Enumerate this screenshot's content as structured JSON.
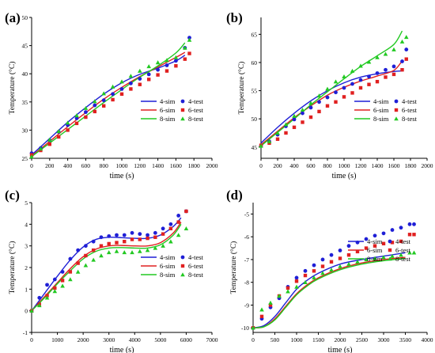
{
  "legend": {
    "sim_labels": [
      "4-sim",
      "6-sim",
      "8-sim"
    ],
    "test_labels": [
      "4-test",
      "6-test",
      "8-test"
    ]
  },
  "colors": {
    "blue": "#1f1fd6",
    "red": "#e02020",
    "green": "#22c922"
  },
  "chart_data": [
    {
      "panel_label": "(a)",
      "type": "line",
      "xlabel": "time (s)",
      "ylabel": "Temperature (°C)",
      "xlim": [
        0,
        2000
      ],
      "ylim": [
        25,
        50
      ],
      "xticks": [
        0,
        200,
        400,
        600,
        800,
        1000,
        1200,
        1400,
        1600,
        1800,
        2000
      ],
      "yticks": [
        25,
        30,
        35,
        40,
        45,
        50
      ],
      "legend_position": "bottom-right",
      "series": [
        {
          "name": "4-sim",
          "kind": "line",
          "color": "blue",
          "x": [
            0,
            200,
            400,
            600,
            800,
            1000,
            1200,
            1400,
            1600,
            1700
          ],
          "y": [
            25.6,
            28.5,
            31.4,
            34.0,
            36.4,
            38.4,
            39.9,
            41.0,
            42.3,
            43.3
          ]
        },
        {
          "name": "6-sim",
          "kind": "line",
          "color": "red",
          "x": [
            0,
            200,
            400,
            600,
            800,
            1000,
            1200,
            1400,
            1600,
            1700
          ],
          "y": [
            25.4,
            28.0,
            30.6,
            33.1,
            35.5,
            37.6,
            39.5,
            41.2,
            42.9,
            43.8
          ]
        },
        {
          "name": "8-sim",
          "kind": "line",
          "color": "green",
          "x": [
            0,
            200,
            400,
            600,
            800,
            1000,
            1200,
            1400,
            1600,
            1700
          ],
          "y": [
            25.3,
            27.7,
            30.1,
            32.5,
            34.9,
            37.2,
            39.4,
            41.4,
            43.7,
            45.5
          ]
        },
        {
          "name": "4-test",
          "kind": "marker",
          "shape": "circle",
          "color": "blue",
          "x": [
            0,
            100,
            200,
            300,
            400,
            500,
            600,
            700,
            800,
            900,
            1000,
            1100,
            1200,
            1300,
            1400,
            1500,
            1600,
            1700,
            1750
          ],
          "y": [
            25.9,
            26.8,
            28.2,
            29.7,
            30.9,
            32.1,
            33.2,
            34.4,
            35.3,
            36.4,
            37.3,
            38.3,
            39.1,
            39.9,
            40.7,
            41.5,
            42.3,
            44.6,
            46.4
          ]
        },
        {
          "name": "6-test",
          "kind": "marker",
          "shape": "square",
          "color": "red",
          "x": [
            0,
            100,
            200,
            300,
            400,
            500,
            600,
            700,
            800,
            900,
            1000,
            1100,
            1200,
            1300,
            1400,
            1500,
            1600,
            1700,
            1750
          ],
          "y": [
            25.6,
            26.4,
            27.5,
            28.8,
            30.0,
            31.2,
            32.3,
            33.3,
            34.3,
            35.4,
            36.4,
            37.3,
            38.1,
            39.0,
            39.8,
            40.5,
            41.4,
            42.6,
            43.6
          ]
        },
        {
          "name": "8-test",
          "kind": "marker",
          "shape": "triangle",
          "color": "green",
          "x": [
            0,
            100,
            200,
            300,
            400,
            500,
            600,
            700,
            800,
            900,
            1000,
            1100,
            1200,
            1300,
            1400,
            1500,
            1600,
            1700,
            1750
          ],
          "y": [
            25.3,
            26.7,
            28.3,
            29.8,
            31.3,
            32.6,
            33.9,
            35.1,
            36.5,
            37.7,
            38.6,
            39.6,
            40.5,
            41.3,
            42.0,
            42.4,
            42.9,
            44.6,
            46.0
          ]
        }
      ]
    },
    {
      "panel_label": "(b)",
      "type": "line",
      "xlabel": "time (s)",
      "ylabel": "Temperature (°C)",
      "xlim": [
        0,
        2000
      ],
      "ylim": [
        43,
        68
      ],
      "xticks": [
        0,
        200,
        400,
        600,
        800,
        1000,
        1200,
        1400,
        1600,
        1800,
        2000
      ],
      "yticks": [
        45,
        50,
        55,
        60,
        65
      ],
      "legend_position": "bottom-right",
      "series": [
        {
          "name": "4-sim",
          "kind": "line",
          "color": "blue",
          "x": [
            0,
            200,
            400,
            600,
            800,
            1000,
            1200,
            1400,
            1600,
            1700
          ],
          "y": [
            45.7,
            48.5,
            51.0,
            53.2,
            55.0,
            56.4,
            57.4,
            58.0,
            58.4,
            58.5
          ]
        },
        {
          "name": "6-sim",
          "kind": "line",
          "color": "red",
          "x": [
            0,
            200,
            400,
            600,
            800,
            1000,
            1200,
            1400,
            1600,
            1700
          ],
          "y": [
            45.4,
            47.8,
            50.2,
            52.3,
            54.2,
            55.6,
            56.7,
            57.6,
            58.6,
            60.3
          ]
        },
        {
          "name": "8-sim",
          "kind": "line",
          "color": "green",
          "x": [
            0,
            200,
            400,
            600,
            800,
            1000,
            1200,
            1400,
            1600,
            1700
          ],
          "y": [
            45.2,
            47.6,
            50.0,
            52.5,
            54.8,
            57.1,
            59.3,
            61.2,
            63.2,
            65.6
          ]
        },
        {
          "name": "4-test",
          "kind": "marker",
          "shape": "circle",
          "color": "blue",
          "x": [
            0,
            100,
            200,
            300,
            400,
            500,
            600,
            700,
            800,
            900,
            1000,
            1100,
            1200,
            1300,
            1400,
            1500,
            1600,
            1700,
            1750
          ],
          "y": [
            45.2,
            46.0,
            47.2,
            48.7,
            49.9,
            51.0,
            52.0,
            53.0,
            53.8,
            54.7,
            55.5,
            56.2,
            56.9,
            57.5,
            58.1,
            58.7,
            59.3,
            60.2,
            62.3
          ]
        },
        {
          "name": "6-test",
          "kind": "marker",
          "shape": "square",
          "color": "red",
          "x": [
            0,
            100,
            200,
            300,
            400,
            500,
            600,
            700,
            800,
            900,
            1000,
            1100,
            1200,
            1300,
            1400,
            1500,
            1600,
            1700,
            1750
          ],
          "y": [
            45.3,
            45.7,
            46.4,
            47.5,
            48.5,
            49.4,
            50.3,
            51.3,
            52.3,
            53.0,
            53.9,
            54.6,
            55.5,
            56.1,
            56.6,
            57.4,
            57.9,
            58.7,
            60.6
          ]
        },
        {
          "name": "8-test",
          "kind": "marker",
          "shape": "triangle",
          "color": "green",
          "x": [
            0,
            100,
            200,
            300,
            400,
            500,
            600,
            700,
            800,
            900,
            1000,
            1100,
            1200,
            1300,
            1400,
            1500,
            1600,
            1700,
            1750
          ],
          "y": [
            45.2,
            46.0,
            47.5,
            49.0,
            50.5,
            51.6,
            52.8,
            54.1,
            55.3,
            56.6,
            57.5,
            58.5,
            59.4,
            60.1,
            60.9,
            61.5,
            62.3,
            63.7,
            64.5
          ]
        }
      ]
    },
    {
      "panel_label": "(c)",
      "type": "line",
      "xlabel": "time (s)",
      "ylabel": "Temperature (°C)",
      "xlim": [
        0,
        7000
      ],
      "ylim": [
        -1,
        5
      ],
      "xticks": [
        0,
        1000,
        2000,
        3000,
        4000,
        5000,
        6000,
        7000
      ],
      "yticks": [
        -1,
        0,
        1,
        2,
        3,
        4,
        5
      ],
      "legend_position": "bottom-right",
      "series": [
        {
          "name": "4-sim",
          "kind": "line",
          "color": "blue",
          "x": [
            0,
            500,
            1000,
            1500,
            2000,
            2500,
            3000,
            3500,
            4000,
            4500,
            5000,
            5500,
            5800
          ],
          "y": [
            0.0,
            0.8,
            1.6,
            2.35,
            2.95,
            3.3,
            3.4,
            3.38,
            3.35,
            3.35,
            3.5,
            3.9,
            4.3
          ]
        },
        {
          "name": "6-sim",
          "kind": "line",
          "color": "red",
          "x": [
            0,
            500,
            1000,
            1500,
            2000,
            2500,
            3000,
            3500,
            4000,
            4500,
            5000,
            5500,
            5800
          ],
          "y": [
            0.0,
            0.65,
            1.3,
            1.95,
            2.5,
            2.85,
            3.0,
            3.02,
            3.0,
            3.0,
            3.15,
            3.6,
            4.1
          ]
        },
        {
          "name": "8-sim",
          "kind": "line",
          "color": "green",
          "x": [
            0,
            500,
            1000,
            1500,
            2000,
            2500,
            3000,
            3500,
            4000,
            4500,
            5000,
            5500,
            5800
          ],
          "y": [
            0.0,
            0.6,
            1.25,
            1.85,
            2.4,
            2.75,
            2.9,
            2.92,
            2.9,
            2.9,
            3.05,
            3.5,
            4.0
          ]
        },
        {
          "name": "4-test",
          "kind": "marker",
          "shape": "circle",
          "color": "blue",
          "x": [
            0,
            300,
            600,
            900,
            1200,
            1500,
            1800,
            2100,
            2400,
            2700,
            3000,
            3300,
            3600,
            3900,
            4200,
            4500,
            4800,
            5100,
            5400,
            5700,
            6000
          ],
          "y": [
            0.0,
            0.6,
            1.2,
            1.45,
            1.8,
            2.4,
            2.8,
            3.0,
            3.2,
            3.4,
            3.45,
            3.5,
            3.5,
            3.6,
            3.55,
            3.5,
            3.6,
            3.8,
            4.0,
            4.4,
            4.6
          ]
        },
        {
          "name": "6-test",
          "kind": "marker",
          "shape": "square",
          "color": "red",
          "x": [
            0,
            300,
            600,
            900,
            1200,
            1500,
            1800,
            2100,
            2400,
            2700,
            3000,
            3300,
            3600,
            3900,
            4200,
            4500,
            4800,
            5100,
            5400,
            5700,
            6000
          ],
          "y": [
            0.0,
            0.3,
            0.7,
            1.05,
            1.4,
            1.8,
            2.2,
            2.55,
            2.8,
            3.0,
            3.1,
            3.15,
            3.2,
            3.3,
            3.3,
            3.35,
            3.4,
            3.55,
            3.8,
            4.1,
            4.6
          ]
        },
        {
          "name": "8-test",
          "kind": "marker",
          "shape": "triangle",
          "color": "green",
          "x": [
            0,
            300,
            600,
            900,
            1200,
            1500,
            1800,
            2100,
            2400,
            2700,
            3000,
            3300,
            3600,
            3900,
            4200,
            4500,
            4800,
            5100,
            5400,
            5700,
            6000
          ],
          "y": [
            0.0,
            0.25,
            0.6,
            0.9,
            1.15,
            1.45,
            1.8,
            2.1,
            2.35,
            2.55,
            2.7,
            2.75,
            2.7,
            2.7,
            2.75,
            2.8,
            2.9,
            3.0,
            3.2,
            3.5,
            3.8
          ]
        }
      ]
    },
    {
      "panel_label": "(d)",
      "type": "line",
      "xlabel": "time (s)",
      "ylabel": "Temperature (°C)",
      "xlim": [
        0,
        4000
      ],
      "ylim": [
        -10.2,
        -4.5
      ],
      "xticks": [
        0,
        500,
        1000,
        1500,
        2000,
        2500,
        3000,
        3500,
        4000
      ],
      "yticks": [
        -10,
        -9,
        -8,
        -7,
        -6,
        -5
      ],
      "legend_position": "bottom-right",
      "series": [
        {
          "name": "4-sim",
          "kind": "line",
          "color": "blue",
          "x": [
            0,
            250,
            500,
            750,
            1000,
            1250,
            1500,
            2000,
            2500,
            3000,
            3500
          ],
          "y": [
            -10.0,
            -9.9,
            -9.5,
            -8.9,
            -8.3,
            -7.9,
            -7.6,
            -7.2,
            -7.0,
            -6.85,
            -6.7
          ]
        },
        {
          "name": "6-sim",
          "kind": "line",
          "color": "red",
          "x": [
            0,
            250,
            500,
            750,
            1000,
            1250,
            1500,
            2000,
            2500,
            3000,
            3500
          ],
          "y": [
            -10.0,
            -9.95,
            -9.6,
            -9.05,
            -8.5,
            -8.1,
            -7.8,
            -7.4,
            -7.15,
            -7.0,
            -6.9
          ]
        },
        {
          "name": "8-sim",
          "kind": "line",
          "color": "green",
          "x": [
            0,
            250,
            500,
            750,
            1000,
            1250,
            1500,
            2000,
            2500,
            3000,
            3500
          ],
          "y": [
            -10.0,
            -9.95,
            -9.65,
            -9.1,
            -8.55,
            -8.15,
            -7.85,
            -7.45,
            -7.2,
            -7.05,
            -6.95
          ]
        },
        {
          "name": "4-test",
          "kind": "marker",
          "shape": "circle",
          "color": "blue",
          "x": [
            0,
            200,
            400,
            600,
            800,
            1000,
            1200,
            1400,
            1600,
            1800,
            2000,
            2200,
            2400,
            2600,
            2800,
            3000,
            3200,
            3400,
            3600,
            3700
          ],
          "y": [
            -10.0,
            -9.6,
            -9.1,
            -8.7,
            -8.2,
            -7.8,
            -7.5,
            -7.25,
            -7.0,
            -6.8,
            -6.6,
            -6.4,
            -6.25,
            -6.1,
            -5.95,
            -5.85,
            -5.7,
            -5.6,
            -5.45,
            -5.45
          ]
        },
        {
          "name": "6-test",
          "kind": "marker",
          "shape": "square",
          "color": "red",
          "x": [
            0,
            200,
            400,
            600,
            800,
            1000,
            1200,
            1400,
            1600,
            1800,
            2000,
            2200,
            2400,
            2600,
            2800,
            3000,
            3200,
            3400,
            3600,
            3700
          ],
          "y": [
            -10.0,
            -9.5,
            -9.0,
            -8.6,
            -8.25,
            -7.95,
            -7.7,
            -7.5,
            -7.3,
            -7.1,
            -6.95,
            -6.8,
            -6.65,
            -6.5,
            -6.4,
            -6.3,
            -6.25,
            -6.2,
            -5.9,
            -5.9
          ]
        },
        {
          "name": "8-test",
          "kind": "marker",
          "shape": "triangle",
          "color": "green",
          "x": [
            0,
            200,
            400,
            600,
            800,
            1000,
            1200,
            1400,
            1600,
            1800,
            2000,
            2200,
            2400,
            2600,
            2800,
            3000,
            3200,
            3400,
            3600,
            3700
          ],
          "y": [
            -10.0,
            -9.2,
            -8.9,
            -8.6,
            -8.4,
            -8.2,
            -8.0,
            -7.8,
            -7.6,
            -7.45,
            -7.3,
            -7.2,
            -7.1,
            -7.0,
            -6.95,
            -6.9,
            -6.85,
            -6.8,
            -6.7,
            -6.7
          ]
        }
      ]
    }
  ]
}
